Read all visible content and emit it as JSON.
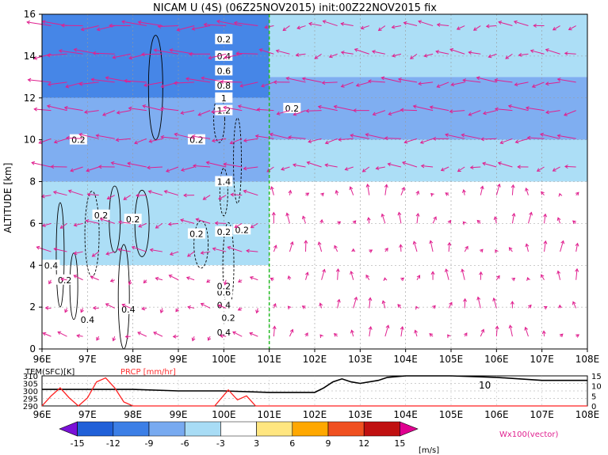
{
  "title": "NICAM U (4S) (06Z25NOV2015) init:00Z22NOV2015 fix",
  "chart_data": [
    {
      "type": "heatmap",
      "subtype": "longitude-height cross section with vector and contour overlay",
      "title": "NICAM U (4S) (06Z25NOV2015) init:00Z22NOV2015 fix",
      "xlabel": "",
      "ylabel": "ALTITUDE [km]",
      "x_ticks": [
        "96E",
        "97E",
        "98E",
        "99E",
        "100E",
        "101E",
        "102E",
        "103E",
        "104E",
        "105E",
        "106E",
        "107E",
        "108E"
      ],
      "y_ticks": [
        "0",
        "2",
        "4",
        "6",
        "8",
        "10",
        "12",
        "14",
        "16"
      ],
      "xlim": [
        96,
        108
      ],
      "ylim": [
        0,
        16
      ],
      "grid": true,
      "marker_line_lon": 101,
      "contour_labels": [
        "0.2",
        "0.4",
        "0.6",
        "0.8",
        "1",
        "1.2",
        "1.4",
        "0.2",
        "0.2",
        "0.4",
        "0.2",
        "0.2",
        "0.2",
        "0.4",
        "0.4",
        "0.6",
        "0.2",
        "0.2",
        "0.2",
        "0.2",
        "0.2",
        "0.4",
        "0.2",
        "0.4"
      ],
      "wind_regions": [
        {
          "lon": [
            96,
            101
          ],
          "alt": [
            12,
            16
          ],
          "u": -12
        },
        {
          "lon": [
            96,
            101
          ],
          "alt": [
            8,
            12
          ],
          "u": -9
        },
        {
          "lon": [
            96,
            101
          ],
          "alt": [
            4,
            8
          ],
          "u": -6
        },
        {
          "lon": [
            96,
            101
          ],
          "alt": [
            0,
            4
          ],
          "u": -3
        },
        {
          "lon": [
            101,
            108
          ],
          "alt": [
            13,
            16
          ],
          "u": -6
        },
        {
          "lon": [
            101,
            108
          ],
          "alt": [
            10,
            13
          ],
          "u": -9
        },
        {
          "lon": [
            101,
            108
          ],
          "alt": [
            8,
            10
          ],
          "u": -6
        },
        {
          "lon": [
            101,
            108
          ],
          "alt": [
            0,
            8
          ],
          "u": 0
        }
      ]
    },
    {
      "type": "line",
      "series": [
        {
          "name": "TEM(SFC)[K]",
          "color": "#000000",
          "x": [
            96,
            97,
            98,
            99,
            100,
            101,
            101.5,
            102,
            102.2,
            102.4,
            102.6,
            102.8,
            103,
            103.4,
            103.6,
            104,
            105,
            106,
            107,
            108
          ],
          "y": [
            301,
            301,
            301,
            300,
            300,
            299,
            299,
            299,
            302,
            306,
            308,
            306,
            305,
            307,
            309,
            310,
            310,
            309,
            307,
            307
          ]
        },
        {
          "name": "PRCP [mm/hr]",
          "color": "#ff0000",
          "x": [
            96,
            96.2,
            96.4,
            96.6,
            96.8,
            97,
            97.2,
            97.4,
            97.6,
            97.8,
            98,
            98.2,
            99,
            99.8,
            100.1,
            100.3,
            100.5,
            100.7,
            101,
            108
          ],
          "y": [
            0,
            5,
            9,
            4,
            0,
            4,
            12,
            14,
            9,
            2,
            0,
            0,
            0,
            0,
            8,
            3,
            5,
            0,
            0,
            0
          ]
        }
      ],
      "y_ticks_left": [
        "290",
        "295",
        "300",
        "305",
        "310"
      ],
      "y_ticks_right": [
        "0",
        "5",
        "10",
        "15"
      ],
      "x_ticks": [
        "96E",
        "97E",
        "98E",
        "99E",
        "100E",
        "101E",
        "102E",
        "103E",
        "104E",
        "105E",
        "106E",
        "107E",
        "108E"
      ],
      "annotations": [
        "10"
      ]
    }
  ],
  "colorbar": {
    "labels": [
      "-15",
      "-12",
      "-9",
      "-6",
      "-3",
      "3",
      "6",
      "9",
      "12",
      "15"
    ],
    "colors": [
      "#7a10d8",
      "#2060d8",
      "#3c7fe6",
      "#78aaf0",
      "#a8dcf5",
      "#ffffff",
      "#ffe680",
      "#ffa800",
      "#f05020",
      "#c01010",
      "#e00090"
    ],
    "unit": "[m/s]"
  },
  "vector_legend": "Wx100(vector)",
  "vector_color": "#e0208f"
}
